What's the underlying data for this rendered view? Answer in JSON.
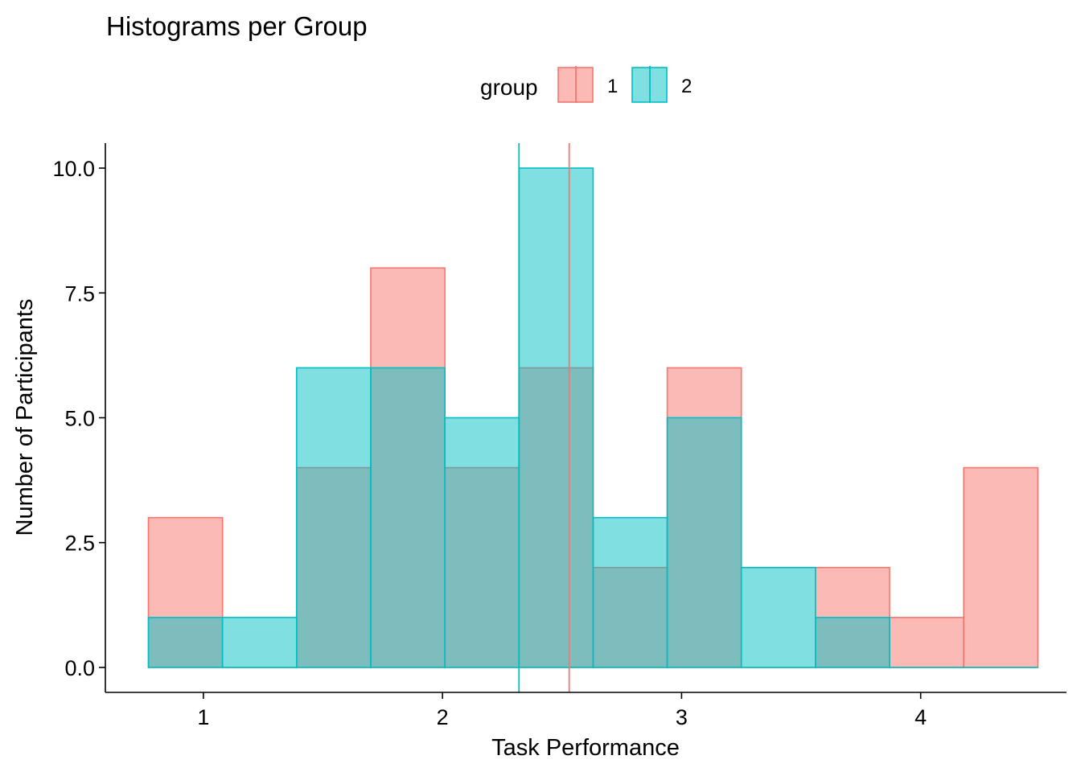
{
  "chart_data": {
    "type": "histogram",
    "title": "Histograms per Group",
    "xlabel": "Task Performance",
    "ylabel": "Number of Participants",
    "xlim": [
      0.59,
      4.61
    ],
    "ylim": [
      -0.5,
      10.5
    ],
    "xticks": [
      1,
      2,
      3,
      4
    ],
    "xtick_labels": [
      "1",
      "2",
      "3",
      "4"
    ],
    "yticks": [
      0,
      2.5,
      5,
      7.5,
      10
    ],
    "ytick_labels": [
      "0.0",
      "2.5",
      "5.0",
      "7.5",
      "10.0"
    ],
    "grid": false,
    "legend": {
      "title": "group",
      "position": "top",
      "entries": [
        {
          "label": "1",
          "color": "#F8766D"
        },
        {
          "label": "2",
          "color": "#00BFC4"
        }
      ]
    },
    "bin_edges": [
      0.77,
      1.08,
      1.39,
      1.7,
      2.01,
      2.32,
      2.63,
      2.94,
      3.25,
      3.56,
      3.87,
      4.18,
      4.49
    ],
    "series": [
      {
        "name": "1",
        "color": "#F8766D",
        "counts": [
          3,
          0,
          4,
          8,
          4,
          6,
          2,
          6,
          0,
          2,
          1,
          4
        ],
        "mean": 2.53
      },
      {
        "name": "2",
        "color": "#00BFC4",
        "counts": [
          1,
          1,
          6,
          6,
          5,
          10,
          3,
          5,
          2,
          1,
          0,
          0
        ],
        "mean": 2.32
      }
    ]
  }
}
